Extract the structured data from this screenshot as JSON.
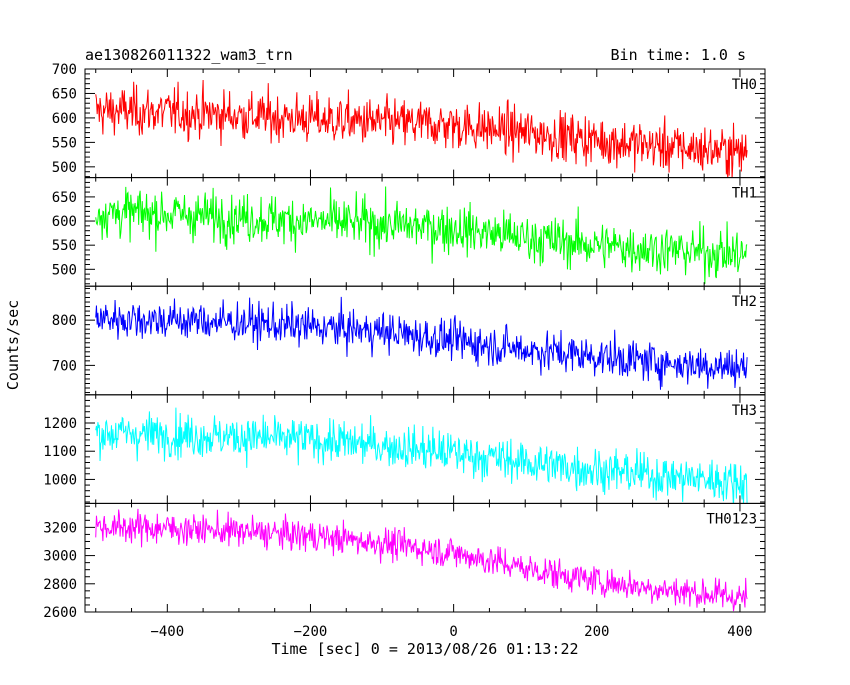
{
  "header": {
    "title": "ae130826011322_wam3_trn",
    "bin_time": "Bin time: 1.0 s"
  },
  "axes": {
    "xlabel": "Time [sec] 0 = 2013/08/26 01:13:22",
    "ylabel": "Counts/sec",
    "xlim": [
      -515,
      435
    ],
    "x_ticks": [
      -400,
      -200,
      0,
      200,
      400
    ]
  },
  "chart_data": {
    "type": "line",
    "title": "ae130826011322_wam3_trn",
    "xlabel": "Time [sec] 0 = 2013/08/26 01:13:22",
    "ylabel": "Counts/sec",
    "bin_time_s": 1.0,
    "x_range": [
      -500,
      410
    ],
    "xlim": [
      -515,
      435
    ],
    "grid": false,
    "note_shape": "noisy light curves; values given are approximate trend at sampled times",
    "series": [
      {
        "name": "TH0",
        "color": "#ff0000",
        "ylim": [
          478,
          700
        ],
        "yticks": [
          500,
          550,
          600,
          650,
          700
        ],
        "noise_sd": 25,
        "x": [
          -500,
          -400,
          -300,
          -200,
          -100,
          0,
          100,
          200,
          300,
          410
        ],
        "y": [
          615,
          612,
          605,
          598,
          590,
          585,
          570,
          555,
          540,
          530
        ]
      },
      {
        "name": "TH1",
        "color": "#00ff00",
        "ylim": [
          465,
          690
        ],
        "yticks": [
          500,
          550,
          600,
          650
        ],
        "noise_sd": 25,
        "x": [
          -500,
          -400,
          -300,
          -200,
          -100,
          0,
          100,
          200,
          300,
          410
        ],
        "y": [
          618,
          615,
          607,
          600,
          593,
          585,
          565,
          550,
          540,
          530
        ]
      },
      {
        "name": "TH2",
        "color": "#0000ff",
        "ylim": [
          635,
          875
        ],
        "yticks": [
          700,
          800
        ],
        "noise_sd": 22,
        "x": [
          -500,
          -400,
          -300,
          -200,
          -100,
          0,
          100,
          200,
          300,
          410
        ],
        "y": [
          805,
          800,
          795,
          785,
          775,
          755,
          735,
          720,
          705,
          695
        ]
      },
      {
        "name": "TH3",
        "color": "#00ffff",
        "ylim": [
          915,
          1300
        ],
        "yticks": [
          1000,
          1100,
          1200
        ],
        "noise_sd": 38,
        "x": [
          -500,
          -400,
          -300,
          -200,
          -100,
          0,
          100,
          200,
          300,
          410
        ],
        "y": [
          1165,
          1160,
          1150,
          1140,
          1120,
          1095,
          1060,
          1035,
          1010,
          990
        ]
      },
      {
        "name": "TH0123",
        "color": "#ff00ff",
        "ylim": [
          2600,
          3370
        ],
        "yticks": [
          2600,
          2800,
          3000,
          3200
        ],
        "noise_sd": 55,
        "x": [
          -500,
          -400,
          -300,
          -200,
          -100,
          0,
          100,
          200,
          300,
          410
        ],
        "y": [
          3205,
          3195,
          3170,
          3140,
          3090,
          3020,
          2910,
          2820,
          2755,
          2700
        ]
      }
    ]
  }
}
